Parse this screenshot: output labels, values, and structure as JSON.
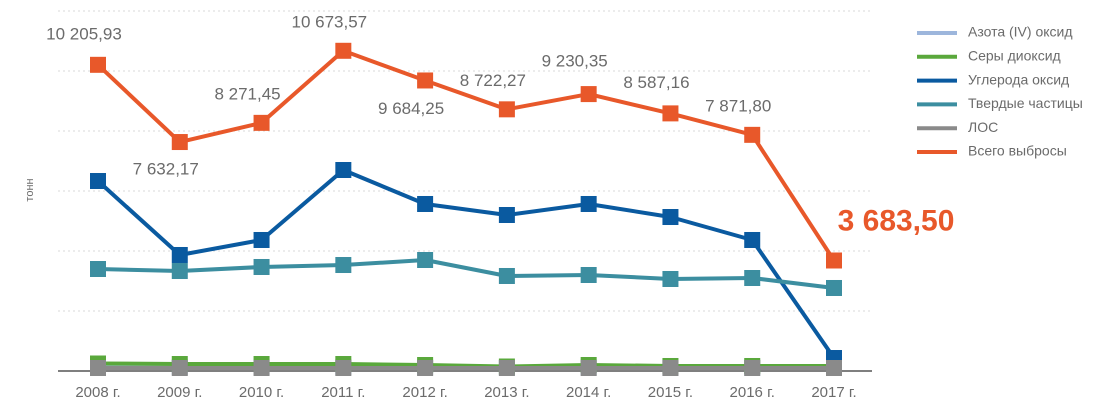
{
  "chart_data": {
    "type": "line",
    "ylabel": "тонн",
    "categories": [
      "2008 г.",
      "2009 г.",
      "2010 г.",
      "2011 г.",
      "2012 г.",
      "2013 г.",
      "2014 г.",
      "2015 г.",
      "2016 г.",
      "2017 г."
    ],
    "ylim": [
      0,
      12000
    ],
    "yticks": [
      0,
      2000,
      4000,
      6000,
      8000,
      10000,
      12000
    ],
    "grid": true,
    "legend": "right",
    "series": [
      {
        "name": "Азота (IV) оксид",
        "color": "#9db6dc",
        "values": [
          130,
          130,
          130,
          130,
          120,
          110,
          120,
          110,
          110,
          110
        ]
      },
      {
        "name": "Серы диоксид",
        "color": "#5aa83c",
        "values": [
          250,
          233,
          233,
          233,
          200,
          150,
          200,
          167,
          167,
          167
        ]
      },
      {
        "name": "Углерода оксид",
        "color": "#0a5aa0",
        "values": [
          6333,
          3867,
          4367,
          6700,
          5567,
          5200,
          5567,
          5133,
          4367,
          433
        ]
      },
      {
        "name": "Твердые частицы",
        "color": "#3c8ea0",
        "values": [
          3400,
          3333,
          3467,
          3533,
          3700,
          3167,
          3200,
          3067,
          3100,
          2767
        ]
      },
      {
        "name": "ЛОС",
        "color": "#8a8a8a",
        "values": [
          100,
          100,
          100,
          100,
          100,
          100,
          100,
          100,
          100,
          100
        ]
      },
      {
        "name": "Всего выбросы",
        "color": "#e8582a",
        "values": [
          10205.93,
          7632.17,
          8271.45,
          10673.57,
          9684.25,
          8722.27,
          9230.35,
          8587.16,
          7871.8,
          3683.5
        ],
        "value_labels": [
          "10 205,93",
          "7 632,17",
          "8 271,45",
          "10 673,57",
          "9 684,25",
          "8 722,27",
          "9 230,35",
          "8 587,16",
          "7 871,80",
          "3 683,50"
        ]
      }
    ]
  }
}
